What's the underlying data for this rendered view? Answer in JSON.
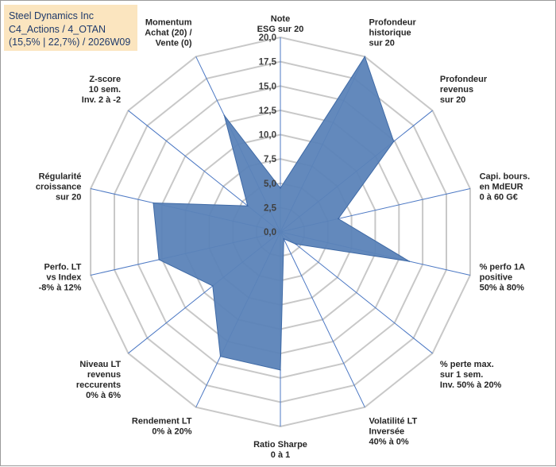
{
  "title": {
    "company": "Steel Dynamics Inc",
    "path": "C4_Actions / 4_OTAN",
    "detail": "(15,5% | 22,7%) / 2026W09"
  },
  "chart_data": {
    "type": "radar",
    "range": [
      0,
      20
    ],
    "ticks": [
      "0,0",
      "2,5",
      "5,0",
      "7,5",
      "10,0",
      "12,5",
      "15,0",
      "17,5",
      "20,0"
    ],
    "axes": [
      [
        "Note",
        "ESG sur 20"
      ],
      [
        "Profondeur",
        "historique",
        "sur 20"
      ],
      [
        "Profondeur",
        "revenus",
        "sur 20"
      ],
      [
        "Capi. bours.",
        "en MdEUR",
        "0 à 60 G€"
      ],
      [
        "% perfo 1A",
        "positive",
        "50% à 80%"
      ],
      [
        "% perte max.",
        "sur 1 sem.",
        "Inv. 50% à 20%"
      ],
      [
        "Volatilité LT",
        "Inversée",
        "40% à 0%"
      ],
      [
        "Ratio Sharpe",
        "0 à 1"
      ],
      [
        "Rendement LT",
        "0% à 20%"
      ],
      [
        "Niveau LT",
        "revenus",
        "reccurents",
        "0% à 6%"
      ],
      [
        "Perfo. LT",
        "vs Index",
        "-8% à 12%"
      ],
      [
        "Régularité",
        "croissance",
        "sur 20"
      ],
      [
        "Z-score",
        "10 sem.",
        "Inv. 2 à -2"
      ],
      [
        "Momentum",
        "Achat (20) /",
        "Vente (0)"
      ]
    ],
    "series": [
      {
        "name": "Steel Dynamics Inc",
        "values": [
          4.5,
          20.0,
          14.9,
          6.1,
          13.6,
          2.0,
          0.8,
          14.2,
          14.2,
          8.9,
          12.8,
          13.4,
          4.3,
          13.3
        ],
        "color": "#5b83b8"
      }
    ],
    "grid": true
  },
  "colors": {
    "fill": "#5b83b8",
    "stroke": "#3f6aa6",
    "grid": "#c8c8c8",
    "spoke": "#4d79c4",
    "title_bg": "#fbe5bf"
  }
}
